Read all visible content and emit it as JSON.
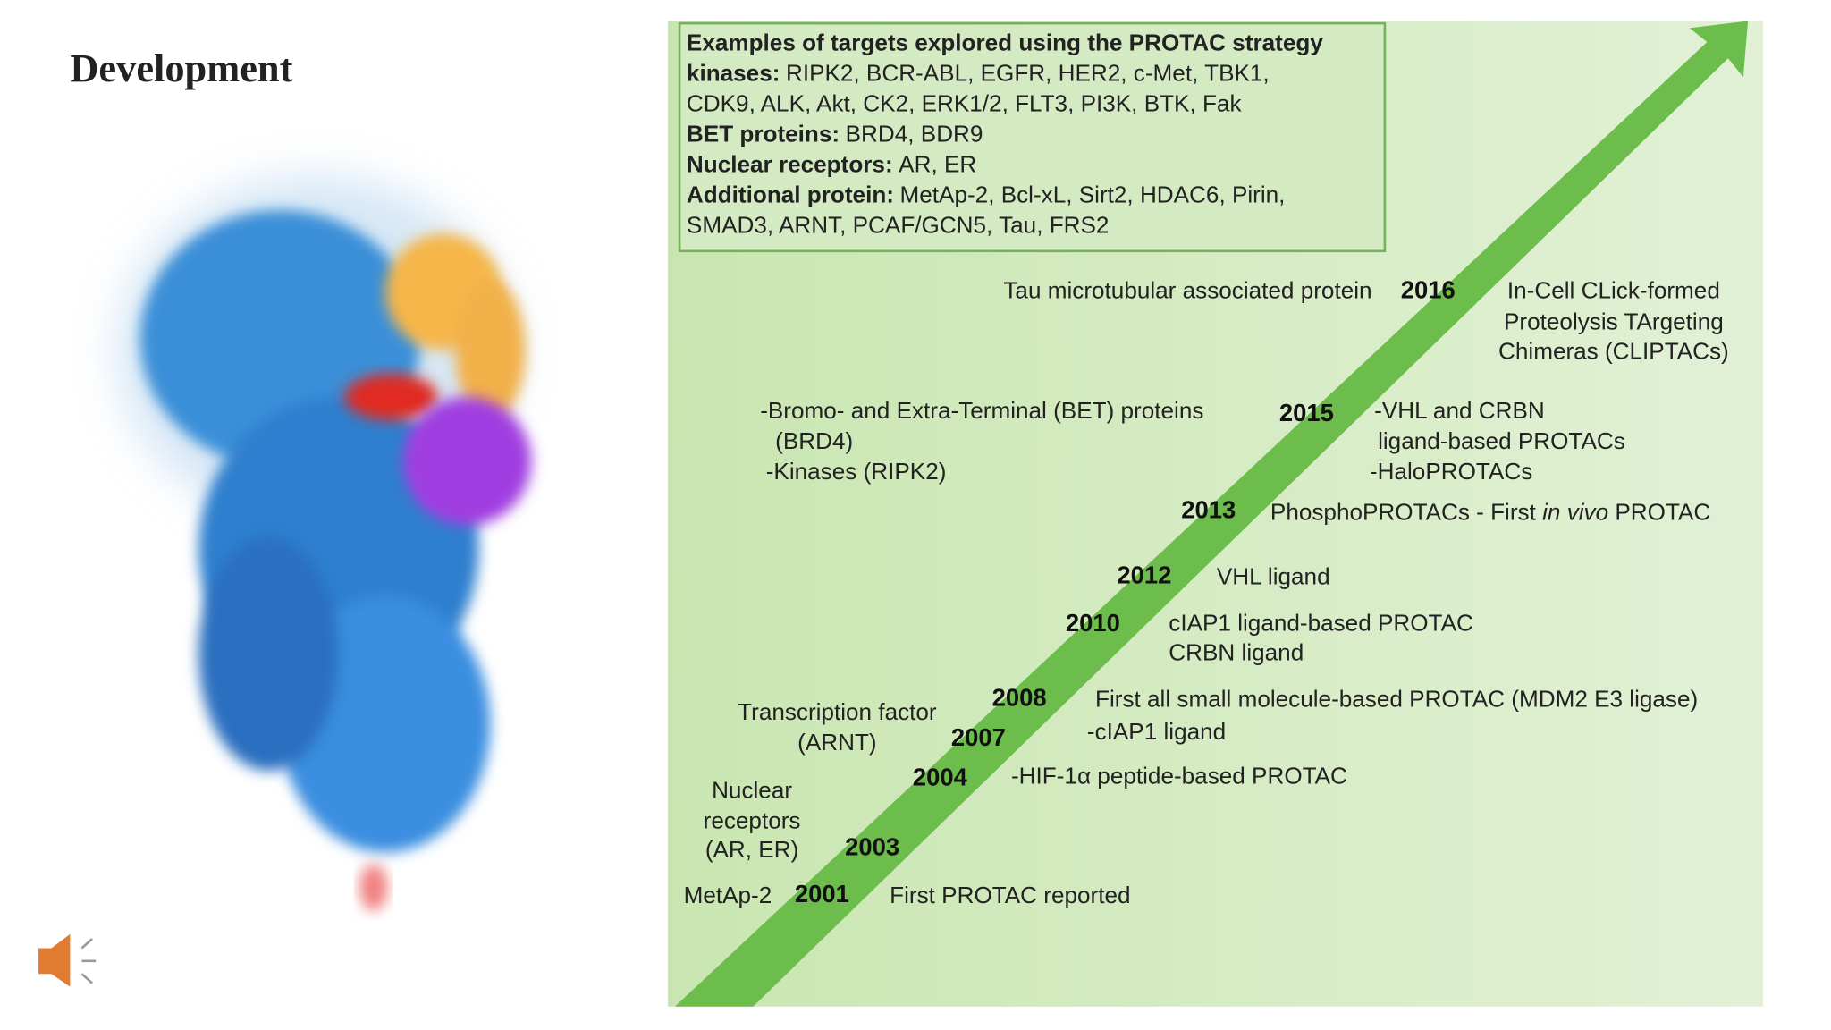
{
  "title": "Development",
  "targets": {
    "heading": "Examples of targets explored using the PROTAC strategy",
    "groups": [
      {
        "label": "kinases:",
        "lines": [
          "RIPK2, BCR-ABL, EGFR, HER2, c-Met, TBK1,",
          "CDK9, ALK, Akt, CK2, ERK1/2, FLT3, PI3K, BTK, Fak"
        ]
      },
      {
        "label": "BET proteins:",
        "lines": [
          "BRD4, BDR9"
        ]
      },
      {
        "label": "Nuclear receptors:",
        "lines": [
          "AR, ER"
        ]
      },
      {
        "label": "Additional protein:",
        "lines": [
          "MetAp-2, Bcl-xL, Sirt2, HDAC6, Pirin,",
          "SMAD3, ARNT, PCAF/GCN5, Tau, FRS2"
        ]
      }
    ]
  },
  "timeline": [
    {
      "year": "2016",
      "left": [
        "Tau microtubular associated protein"
      ],
      "right": [
        "In-Cell CLick-formed",
        "Proteolysis TArgeting",
        "Chimeras (CLIPTACs)"
      ]
    },
    {
      "year": "2015",
      "left": [
        "-Bromo- and Extra-Terminal (BET) proteins",
        "(BRD4)",
        "-Kinases (RIPK2)"
      ],
      "right": [
        "-VHL and CRBN",
        "ligand-based PROTACs",
        "-HaloPROTACs"
      ]
    },
    {
      "year": "2013",
      "left": [],
      "right": [
        [
          "PhosphoPROTACs - First ",
          "in vivo",
          " PROTAC"
        ]
      ]
    },
    {
      "year": "2012",
      "left": [],
      "right": [
        "VHL ligand"
      ]
    },
    {
      "year": "2010",
      "left": [],
      "right": [
        "cIAP1 ligand-based PROTAC",
        "CRBN ligand"
      ]
    },
    {
      "year": "2008",
      "left": [],
      "right": [
        "First all small molecule-based PROTAC (MDM2 E3 ligase)"
      ]
    },
    {
      "year": "2007",
      "left": [
        "Transcription factor",
        "(ARNT)"
      ],
      "right": [
        "-cIAP1 ligand"
      ]
    },
    {
      "year": "2004",
      "left": [],
      "right": [
        "-HIF-1α peptide-based PROTAC"
      ]
    },
    {
      "year": "2003",
      "left": [
        "Nuclear",
        "receptors",
        "(AR, ER)"
      ],
      "right": []
    },
    {
      "year": "2001",
      "left": [
        "MetAp-2"
      ],
      "right": [
        "First PROTAC reported"
      ]
    }
  ]
}
